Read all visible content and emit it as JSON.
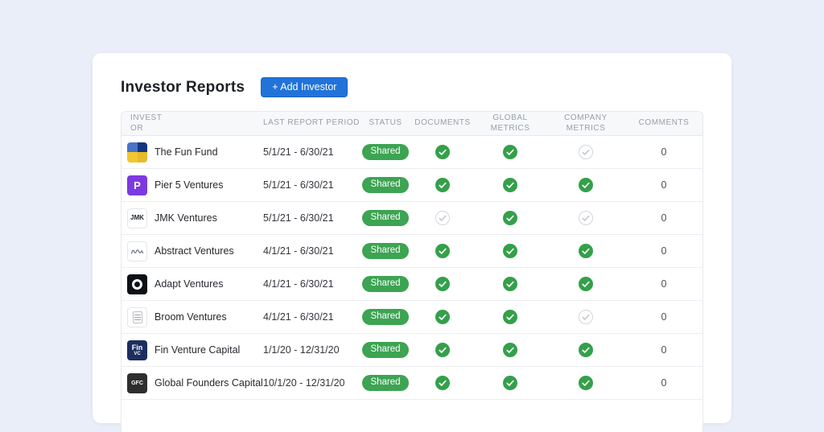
{
  "header": {
    "title": "Investor Reports",
    "add_button_label": "+ Add Investor"
  },
  "colors": {
    "page_background": "#eaeef8",
    "accent_blue": "#2173d9",
    "success_green": "#3ca452",
    "check_green": "#34a04a",
    "inactive_gray": "#d2d6db"
  },
  "table": {
    "columns": [
      "INVESTOR",
      "LAST REPORT PERIOD",
      "STATUS",
      "DOCUMENTS",
      "GLOBAL METRICS",
      "COMPANY METRICS",
      "COMMENTS"
    ],
    "rows": [
      {
        "investor": "The Fun Fund",
        "period": "5/1/21 - 6/30/21",
        "status": "Shared",
        "documents": true,
        "global_metrics": true,
        "company_metrics": false,
        "comments": "0",
        "logo": {
          "type": "tiles",
          "colors": [
            "#4a72c9",
            "#17357f",
            "#f3c52f",
            "#e9b92b"
          ]
        }
      },
      {
        "investor": "Pier 5 Ventures",
        "period": "5/1/21 - 6/30/21",
        "status": "Shared",
        "documents": true,
        "global_metrics": true,
        "company_metrics": true,
        "comments": "0",
        "logo": {
          "type": "glyph",
          "bg": "#7c3ae0",
          "fg": "#ffffff",
          "text": "P",
          "size": 13
        }
      },
      {
        "investor": "JMK Ventures",
        "period": "5/1/21 - 6/30/21",
        "status": "Shared",
        "documents": false,
        "global_metrics": true,
        "company_metrics": false,
        "comments": "0",
        "logo": {
          "type": "glyph",
          "bg": "#ffffff",
          "fg": "#23272e",
          "text": "JMK",
          "size": 8,
          "bordered": true
        }
      },
      {
        "investor": "Abstract Ventures",
        "period": "4/1/21 - 6/30/21",
        "status": "Shared",
        "documents": true,
        "global_metrics": true,
        "company_metrics": true,
        "comments": "0",
        "logo": {
          "type": "squiggle",
          "bg": "#ffffff",
          "fg": "#6b7280",
          "bordered": true
        }
      },
      {
        "investor": "Adapt Ventures",
        "period": "4/1/21 - 6/30/21",
        "status": "Shared",
        "documents": true,
        "global_metrics": true,
        "company_metrics": true,
        "comments": "0",
        "logo": {
          "type": "ring",
          "bg": "#0c1116",
          "fg": "#ffffff"
        }
      },
      {
        "investor": "Broom Ventures",
        "period": "4/1/21 - 6/30/21",
        "status": "Shared",
        "documents": true,
        "global_metrics": true,
        "company_metrics": false,
        "comments": "0",
        "logo": {
          "type": "stripes",
          "bg": "#ffffff",
          "fg": "#9aa1a9",
          "bordered": true
        }
      },
      {
        "investor": "Fin Venture Capital",
        "period": "1/1/20 - 12/31/20",
        "status": "Shared",
        "documents": true,
        "global_metrics": true,
        "company_metrics": true,
        "comments": "0",
        "logo": {
          "type": "stack",
          "bg": "#1d2e5e",
          "fg": "#ffffff",
          "lines": [
            "Fin",
            "VC"
          ]
        }
      },
      {
        "investor": "Global Founders Capital",
        "period": "10/1/20 - 12/31/20",
        "status": "Shared",
        "documents": true,
        "global_metrics": true,
        "company_metrics": true,
        "comments": "0",
        "logo": {
          "type": "glyph",
          "bg": "#2e2e2e",
          "fg": "#ffffff",
          "text": "GFC",
          "size": 7
        }
      }
    ]
  }
}
